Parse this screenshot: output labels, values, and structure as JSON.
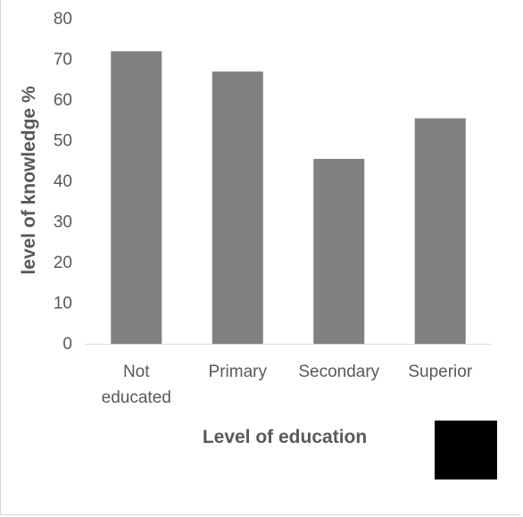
{
  "chart_data": {
    "type": "bar",
    "categories": [
      [
        "Not",
        "educated"
      ],
      [
        "Primary"
      ],
      [
        "Secondary"
      ],
      [
        "Superior"
      ]
    ],
    "values": [
      72,
      67,
      45.5,
      55.5
    ],
    "title": "",
    "xlabel": "Level of education",
    "ylabel": "level of knowledge  %",
    "ylim": [
      0,
      80
    ],
    "yticks": [
      0,
      10,
      20,
      30,
      40,
      50,
      60,
      70,
      80
    ],
    "bar_color": "#808080",
    "axis_color": "#d9d9d9",
    "text_color": "#595959",
    "grid": false,
    "legend": "none"
  },
  "annotations": {
    "redaction_box_color": "#000000"
  }
}
